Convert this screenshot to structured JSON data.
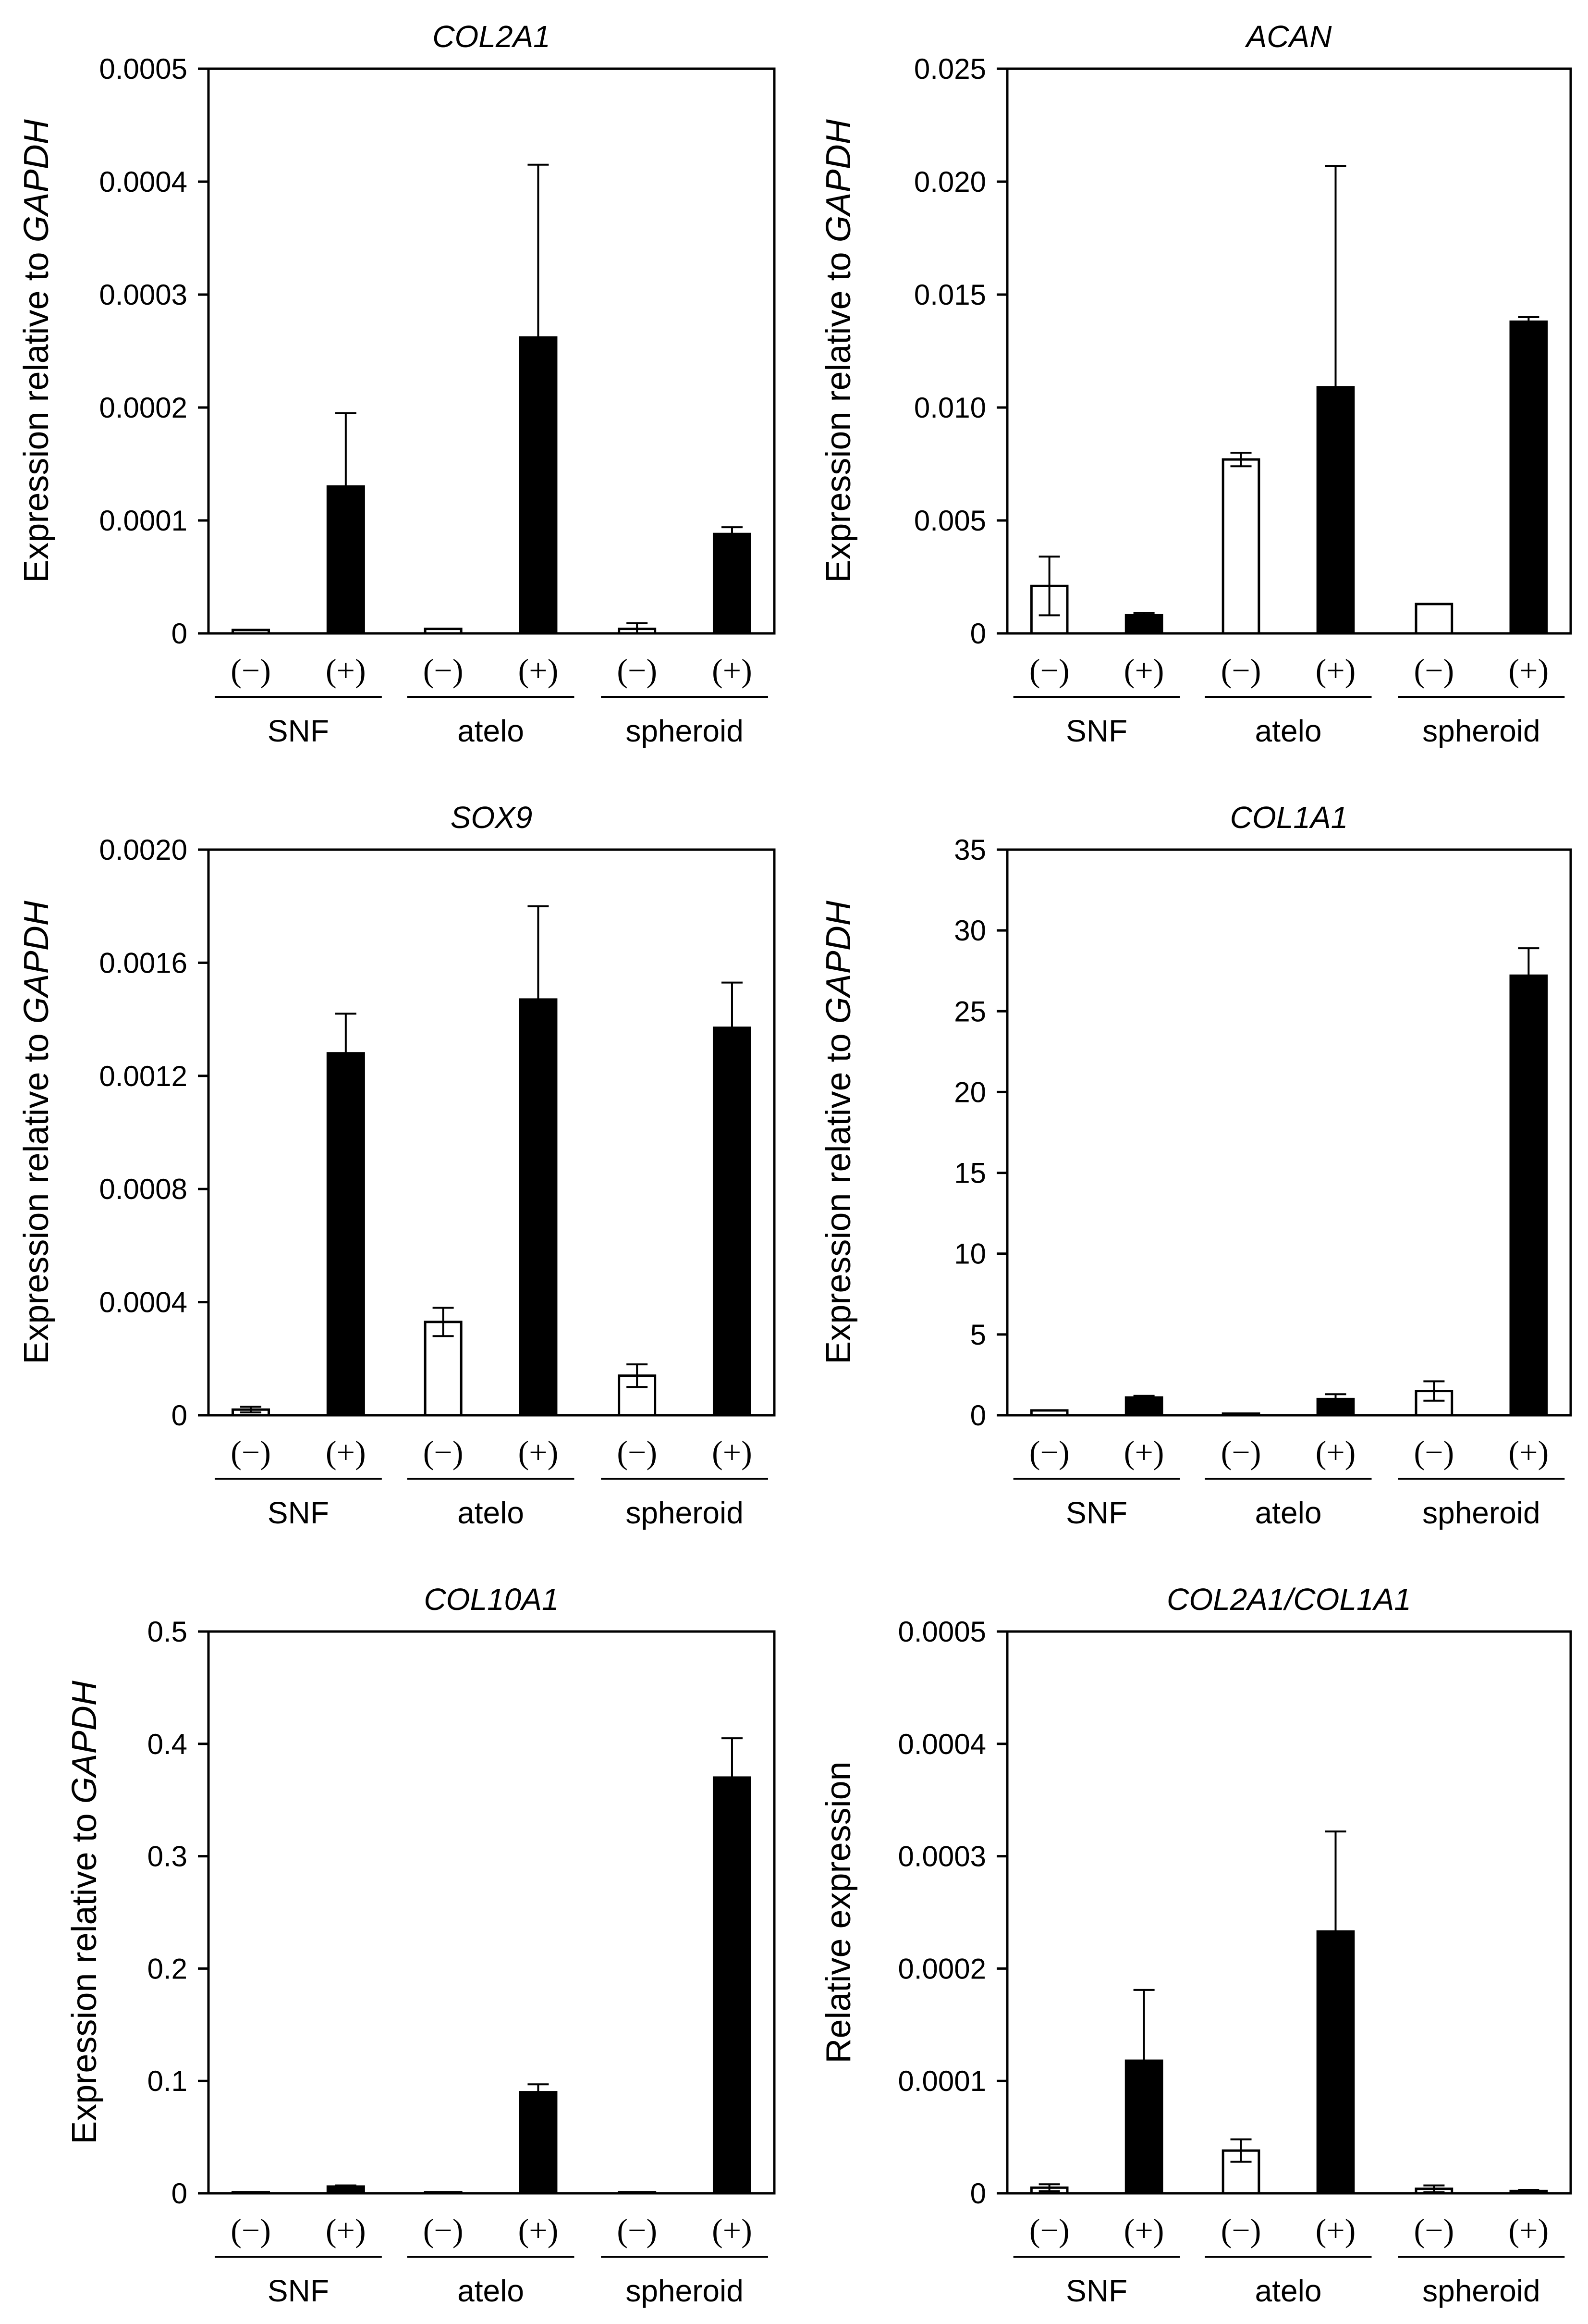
{
  "chart_data": [
    {
      "type": "bar",
      "title": "COL2A1",
      "ylabel": "Expression relative to ",
      "ylabel_italic": "GAPDH",
      "ylim": [
        0,
        0.0005
      ],
      "yticks": [
        0,
        0.0001,
        0.0002,
        0.0003,
        0.0004,
        0.0005
      ],
      "ytick_labels": [
        "0",
        "0.0001",
        "0.0002",
        "0.0003",
        "0.0004",
        "0.0005"
      ],
      "condition_labels": [
        "(−)",
        "(+)",
        "(−)",
        "(+)",
        "(−)",
        "(+)"
      ],
      "groups": [
        "SNF",
        "atelo",
        "spheroid"
      ],
      "series": [
        {
          "name": "(−)",
          "color": "#ffffff",
          "values": [
            3e-06,
            4e-06,
            4e-06
          ],
          "errors": [
            0,
            0,
            5e-06
          ]
        },
        {
          "name": "(+)",
          "color": "#000000",
          "values": [
            0.00013,
            0.000262,
            8.8e-05
          ],
          "errors": [
            6.5e-05,
            0.000153,
            6e-06
          ]
        }
      ]
    },
    {
      "type": "bar",
      "title": "ACAN",
      "ylabel": "Expression relative to ",
      "ylabel_italic": "GAPDH",
      "ylim": [
        0,
        0.025
      ],
      "yticks": [
        0,
        0.005,
        0.01,
        0.015,
        0.02,
        0.025
      ],
      "ytick_labels": [
        "0",
        "0.005",
        "0.010",
        "0.015",
        "0.020",
        "0.025"
      ],
      "condition_labels": [
        "(−)",
        "(+)",
        "(−)",
        "(+)",
        "(−)",
        "(+)"
      ],
      "groups": [
        "SNF",
        "atelo",
        "spheroid"
      ],
      "series": [
        {
          "name": "(−)",
          "color": "#ffffff",
          "values": [
            0.0021,
            0.0077,
            0.0013
          ],
          "errors": [
            0.0013,
            0.0003,
            0
          ]
        },
        {
          "name": "(+)",
          "color": "#000000",
          "values": [
            0.0008,
            0.0109,
            0.0138
          ],
          "errors": [
            0.0001,
            0.0098,
            0.0002
          ]
        }
      ]
    },
    {
      "type": "bar",
      "title": "SOX9",
      "ylabel": "Expression relative to ",
      "ylabel_italic": "GAPDH",
      "ylim": [
        0,
        0.002
      ],
      "yticks": [
        0,
        0.0004,
        0.0008,
        0.0012,
        0.0016,
        0.002
      ],
      "ytick_labels": [
        "0",
        "0.0004",
        "0.0008",
        "0.0012",
        "0.0016",
        "0.0020"
      ],
      "condition_labels": [
        "(−)",
        "(+)",
        "(−)",
        "(+)",
        "(−)",
        "(+)"
      ],
      "groups": [
        "SNF",
        "atelo",
        "spheroid"
      ],
      "series": [
        {
          "name": "(−)",
          "color": "#ffffff",
          "values": [
            2e-05,
            0.00033,
            0.00014
          ],
          "errors": [
            1e-05,
            5e-05,
            4e-05
          ]
        },
        {
          "name": "(+)",
          "color": "#000000",
          "values": [
            0.00128,
            0.00147,
            0.00137
          ],
          "errors": [
            0.00014,
            0.00033,
            0.00016
          ]
        }
      ]
    },
    {
      "type": "bar",
      "title": "COL1A1",
      "ylabel": "Expression relative to ",
      "ylabel_italic": "GAPDH",
      "ylim": [
        0,
        35
      ],
      "yticks": [
        0,
        5,
        10,
        15,
        20,
        25,
        30,
        35
      ],
      "ytick_labels": [
        "0",
        "5",
        "10",
        "15",
        "20",
        "25",
        "30",
        "35"
      ],
      "condition_labels": [
        "(−)",
        "(+)",
        "(−)",
        "(+)",
        "(−)",
        "(+)"
      ],
      "groups": [
        "SNF",
        "atelo",
        "spheroid"
      ],
      "series": [
        {
          "name": "(−)",
          "color": "#ffffff",
          "values": [
            0.3,
            0.1,
            1.5
          ],
          "errors": [
            0,
            0,
            0.6
          ]
        },
        {
          "name": "(+)",
          "color": "#000000",
          "values": [
            1.1,
            1.0,
            27.2
          ],
          "errors": [
            0.1,
            0.3,
            1.7
          ]
        }
      ]
    },
    {
      "type": "bar",
      "title": "COL10A1",
      "ylabel": "Expression relative to ",
      "ylabel_italic": "GAPDH",
      "ylim": [
        0,
        0.5
      ],
      "yticks": [
        0,
        0.1,
        0.2,
        0.3,
        0.4,
        0.5
      ],
      "ytick_labels": [
        "0",
        "0.1",
        "0.2",
        "0.3",
        "0.4",
        "0.5"
      ],
      "condition_labels": [
        "(−)",
        "(+)",
        "(−)",
        "(+)",
        "(−)",
        "(+)"
      ],
      "groups": [
        "SNF",
        "atelo",
        "spheroid"
      ],
      "series": [
        {
          "name": "(−)",
          "color": "#ffffff",
          "values": [
            0.001,
            0.001,
            0.001
          ],
          "errors": [
            0,
            0,
            0
          ]
        },
        {
          "name": "(+)",
          "color": "#000000",
          "values": [
            0.006,
            0.09,
            0.37
          ],
          "errors": [
            0.001,
            0.007,
            0.035
          ]
        }
      ]
    },
    {
      "type": "bar",
      "title": "COL2A1/COL1A1",
      "ylabel": "Relative expression",
      "ylabel_italic": "",
      "ylim": [
        0,
        0.0005
      ],
      "yticks": [
        0,
        0.0001,
        0.0002,
        0.0003,
        0.0004,
        0.0005
      ],
      "ytick_labels": [
        "0",
        "0.0001",
        "0.0002",
        "0.0003",
        "0.0004",
        "0.0005"
      ],
      "condition_labels": [
        "(−)",
        "(+)",
        "(−)",
        "(+)",
        "(−)",
        "(+)"
      ],
      "groups": [
        "SNF",
        "atelo",
        "spheroid"
      ],
      "series": [
        {
          "name": "(−)",
          "color": "#ffffff",
          "values": [
            5e-06,
            3.8e-05,
            4e-06
          ],
          "errors": [
            3e-06,
            1e-05,
            3e-06
          ]
        },
        {
          "name": "(+)",
          "color": "#000000",
          "values": [
            0.000118,
            0.000233,
            2e-06
          ],
          "errors": [
            6.3e-05,
            8.9e-05,
            1e-06
          ]
        }
      ]
    }
  ]
}
